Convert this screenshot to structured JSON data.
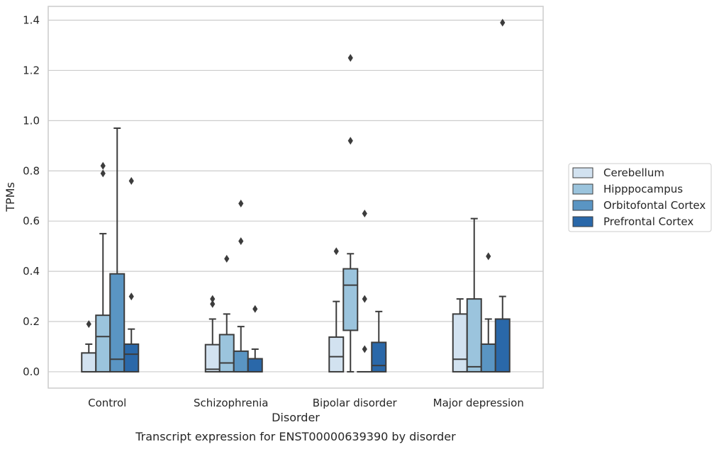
{
  "chart_data": {
    "type": "box",
    "caption": "Transcript expression for ENST00000639390 by disorder",
    "xlabel": "Disorder",
    "ylabel": "TPMs",
    "ylim": [
      -0.065,
      1.455
    ],
    "yticks": [
      0.0,
      0.2,
      0.4,
      0.6,
      0.8,
      1.0,
      1.2,
      1.4
    ],
    "ytick_labels": [
      "0.0",
      "0.2",
      "0.4",
      "0.6",
      "0.8",
      "1.0",
      "1.2",
      "1.4"
    ],
    "grid": true,
    "legend_position": "right",
    "categories": [
      "Control",
      "Schizophrenia",
      "Bipolar disorder",
      "Major depression"
    ],
    "series": [
      {
        "name": "Cerebellum",
        "color": "#d2e2f0",
        "boxes": [
          {
            "min": 0.0,
            "q1": 0.0,
            "median": 0.0,
            "q3": 0.075,
            "max": 0.11,
            "outliers": [
              0.19
            ]
          },
          {
            "min": 0.0,
            "q1": 0.0,
            "median": 0.01,
            "q3": 0.108,
            "max": 0.21,
            "outliers": [
              0.27,
              0.29
            ]
          },
          {
            "min": 0.0,
            "q1": 0.0,
            "median": 0.06,
            "q3": 0.138,
            "max": 0.28,
            "outliers": [
              0.48
            ]
          },
          {
            "min": 0.0,
            "q1": 0.0,
            "median": 0.05,
            "q3": 0.23,
            "max": 0.29,
            "outliers": []
          }
        ]
      },
      {
        "name": "Hipppocampus",
        "color": "#9bc4dd",
        "boxes": [
          {
            "min": 0.0,
            "q1": 0.0,
            "median": 0.14,
            "q3": 0.225,
            "max": 0.55,
            "outliers": [
              0.79,
              0.82
            ]
          },
          {
            "min": 0.0,
            "q1": 0.0,
            "median": 0.035,
            "q3": 0.148,
            "max": 0.23,
            "outliers": [
              0.45
            ]
          },
          {
            "min": 0.0,
            "q1": 0.165,
            "median": 0.345,
            "q3": 0.41,
            "max": 0.47,
            "outliers": [
              0.92,
              1.25
            ]
          },
          {
            "min": 0.0,
            "q1": 0.0,
            "median": 0.02,
            "q3": 0.29,
            "max": 0.61,
            "outliers": []
          }
        ]
      },
      {
        "name": "Orbitofontal Cortex",
        "color": "#5a95c3",
        "boxes": [
          {
            "min": 0.0,
            "q1": 0.0,
            "median": 0.05,
            "q3": 0.39,
            "max": 0.97,
            "outliers": []
          },
          {
            "min": 0.0,
            "q1": 0.0,
            "median": 0.0,
            "q3": 0.082,
            "max": 0.18,
            "outliers": [
              0.52,
              0.67
            ]
          },
          {
            "min": 0.0,
            "q1": 0.0,
            "median": 0.0,
            "q3": 0.0,
            "max": 0.0,
            "outliers": [
              0.09,
              0.29,
              0.63
            ]
          },
          {
            "min": 0.0,
            "q1": 0.0,
            "median": 0.0,
            "q3": 0.11,
            "max": 0.21,
            "outliers": [
              0.46
            ]
          }
        ]
      },
      {
        "name": "Prefrontal Cortex",
        "color": "#2a68a9",
        "boxes": [
          {
            "min": 0.0,
            "q1": 0.0,
            "median": 0.07,
            "q3": 0.11,
            "max": 0.17,
            "outliers": [
              0.3,
              0.76
            ]
          },
          {
            "min": 0.0,
            "q1": 0.0,
            "median": 0.0,
            "q3": 0.052,
            "max": 0.09,
            "outliers": [
              0.25
            ]
          },
          {
            "min": 0.0,
            "q1": 0.0,
            "median": 0.025,
            "q3": 0.117,
            "max": 0.24,
            "outliers": []
          },
          {
            "min": 0.0,
            "q1": 0.0,
            "median": 0.0,
            "q3": 0.21,
            "max": 0.3,
            "outliers": [
              1.39
            ]
          }
        ]
      }
    ]
  }
}
